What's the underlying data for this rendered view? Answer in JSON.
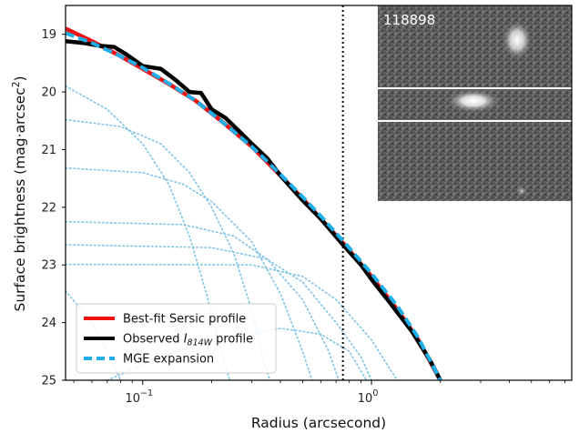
{
  "chart_data": {
    "type": "line",
    "xlabel": "Radius (arcsecond)",
    "ylabel": "Surface brightness (mag·arcsec",
    "ylabel_sup": "2",
    "ylabel_close": ")",
    "x_scale": "log",
    "xlim": [
      0.046,
      7.5
    ],
    "ylim": [
      25,
      18.5
    ],
    "y_inverted": true,
    "x_ticks": [
      {
        "value": 0.1,
        "base": "10",
        "exp": "−1"
      },
      {
        "value": 1.0,
        "base": "10",
        "exp": "0"
      }
    ],
    "y_ticks": [
      19,
      20,
      21,
      22,
      23,
      24,
      25
    ],
    "vline_x": 0.75,
    "vline_style": "black dotted",
    "grid": false,
    "legend_position": "lower-left",
    "series": [
      {
        "name": "Best-fit Sersic profile",
        "color": "#ee1111",
        "style": "solid",
        "points": [
          [
            0.046,
            18.9
          ],
          [
            0.06,
            19.12
          ],
          [
            0.08,
            19.38
          ],
          [
            0.1,
            19.6
          ],
          [
            0.13,
            19.86
          ],
          [
            0.17,
            20.15
          ],
          [
            0.22,
            20.5
          ],
          [
            0.3,
            20.95
          ],
          [
            0.4,
            21.45
          ],
          [
            0.5,
            21.85
          ],
          [
            0.6,
            22.2
          ],
          [
            0.75,
            22.62
          ],
          [
            1.0,
            23.2
          ],
          [
            1.3,
            23.78
          ],
          [
            1.6,
            24.3
          ],
          [
            2.0,
            25.0
          ]
        ]
      },
      {
        "name": "Observed",
        "name_italic": "I",
        "name_sub": "814W",
        "name_suffix": "profile",
        "color": "#000000",
        "style": "solid",
        "points": [
          [
            0.046,
            19.12
          ],
          [
            0.055,
            19.15
          ],
          [
            0.065,
            19.2
          ],
          [
            0.075,
            19.22
          ],
          [
            0.085,
            19.35
          ],
          [
            0.1,
            19.55
          ],
          [
            0.12,
            19.6
          ],
          [
            0.14,
            19.8
          ],
          [
            0.16,
            20.0
          ],
          [
            0.18,
            20.02
          ],
          [
            0.2,
            20.3
          ],
          [
            0.23,
            20.45
          ],
          [
            0.27,
            20.72
          ],
          [
            0.3,
            20.9
          ],
          [
            0.35,
            21.15
          ],
          [
            0.4,
            21.45
          ],
          [
            0.5,
            21.88
          ],
          [
            0.6,
            22.2
          ],
          [
            0.75,
            22.65
          ],
          [
            0.9,
            23.0
          ],
          [
            1.0,
            23.25
          ],
          [
            1.2,
            23.65
          ],
          [
            1.5,
            24.15
          ],
          [
            1.8,
            24.65
          ],
          [
            2.0,
            25.0
          ]
        ]
      },
      {
        "name": "MGE expansion",
        "color": "#1eaee8",
        "style": "dashed",
        "points": [
          [
            0.046,
            18.98
          ],
          [
            0.06,
            19.15
          ],
          [
            0.08,
            19.38
          ],
          [
            0.1,
            19.58
          ],
          [
            0.13,
            19.85
          ],
          [
            0.17,
            20.15
          ],
          [
            0.22,
            20.5
          ],
          [
            0.3,
            20.95
          ],
          [
            0.4,
            21.43
          ],
          [
            0.5,
            21.82
          ],
          [
            0.6,
            22.15
          ],
          [
            0.75,
            22.58
          ],
          [
            1.0,
            23.15
          ],
          [
            1.3,
            23.72
          ],
          [
            1.6,
            24.26
          ],
          [
            2.0,
            25.0
          ]
        ]
      }
    ],
    "components": [
      {
        "points": [
          [
            0.046,
            19.9
          ],
          [
            0.07,
            20.3
          ],
          [
            0.1,
            20.9
          ],
          [
            0.13,
            21.6
          ],
          [
            0.16,
            22.5
          ],
          [
            0.19,
            23.5
          ],
          [
            0.22,
            24.5
          ],
          [
            0.24,
            25.0
          ]
        ]
      },
      {
        "points": [
          [
            0.046,
            20.48
          ],
          [
            0.08,
            20.6
          ],
          [
            0.12,
            20.9
          ],
          [
            0.16,
            21.4
          ],
          [
            0.2,
            22.0
          ],
          [
            0.25,
            22.8
          ],
          [
            0.3,
            23.8
          ],
          [
            0.34,
            24.7
          ],
          [
            0.36,
            25.0
          ]
        ]
      },
      {
        "points": [
          [
            0.046,
            21.32
          ],
          [
            0.1,
            21.4
          ],
          [
            0.15,
            21.6
          ],
          [
            0.2,
            21.9
          ],
          [
            0.3,
            22.6
          ],
          [
            0.4,
            23.5
          ],
          [
            0.5,
            24.5
          ],
          [
            0.55,
            25.0
          ]
        ]
      },
      {
        "points": [
          [
            0.046,
            22.25
          ],
          [
            0.15,
            22.3
          ],
          [
            0.25,
            22.5
          ],
          [
            0.35,
            22.9
          ],
          [
            0.5,
            23.6
          ],
          [
            0.65,
            24.5
          ],
          [
            0.72,
            25.0
          ]
        ]
      },
      {
        "points": [
          [
            0.046,
            22.65
          ],
          [
            0.2,
            22.7
          ],
          [
            0.35,
            22.9
          ],
          [
            0.5,
            23.3
          ],
          [
            0.7,
            24.0
          ],
          [
            0.9,
            24.6
          ],
          [
            1.0,
            25.0
          ]
        ]
      },
      {
        "points": [
          [
            0.046,
            22.99
          ],
          [
            0.3,
            23.0
          ],
          [
            0.5,
            23.2
          ],
          [
            0.7,
            23.6
          ],
          [
            1.0,
            24.3
          ],
          [
            1.2,
            24.8
          ],
          [
            1.3,
            25.0
          ]
        ]
      },
      {
        "points": [
          [
            0.046,
            23.45
          ],
          [
            0.06,
            24.0
          ],
          [
            0.07,
            24.5
          ],
          [
            0.08,
            25.0
          ]
        ]
      },
      {
        "points": [
          [
            0.07,
            25.0
          ],
          [
            0.12,
            24.6
          ],
          [
            0.2,
            24.3
          ],
          [
            0.4,
            24.1
          ],
          [
            0.6,
            24.2
          ],
          [
            0.8,
            24.5
          ],
          [
            0.95,
            25.0
          ]
        ]
      }
    ],
    "inset": {
      "label": "118898",
      "description_hidden": true
    }
  }
}
